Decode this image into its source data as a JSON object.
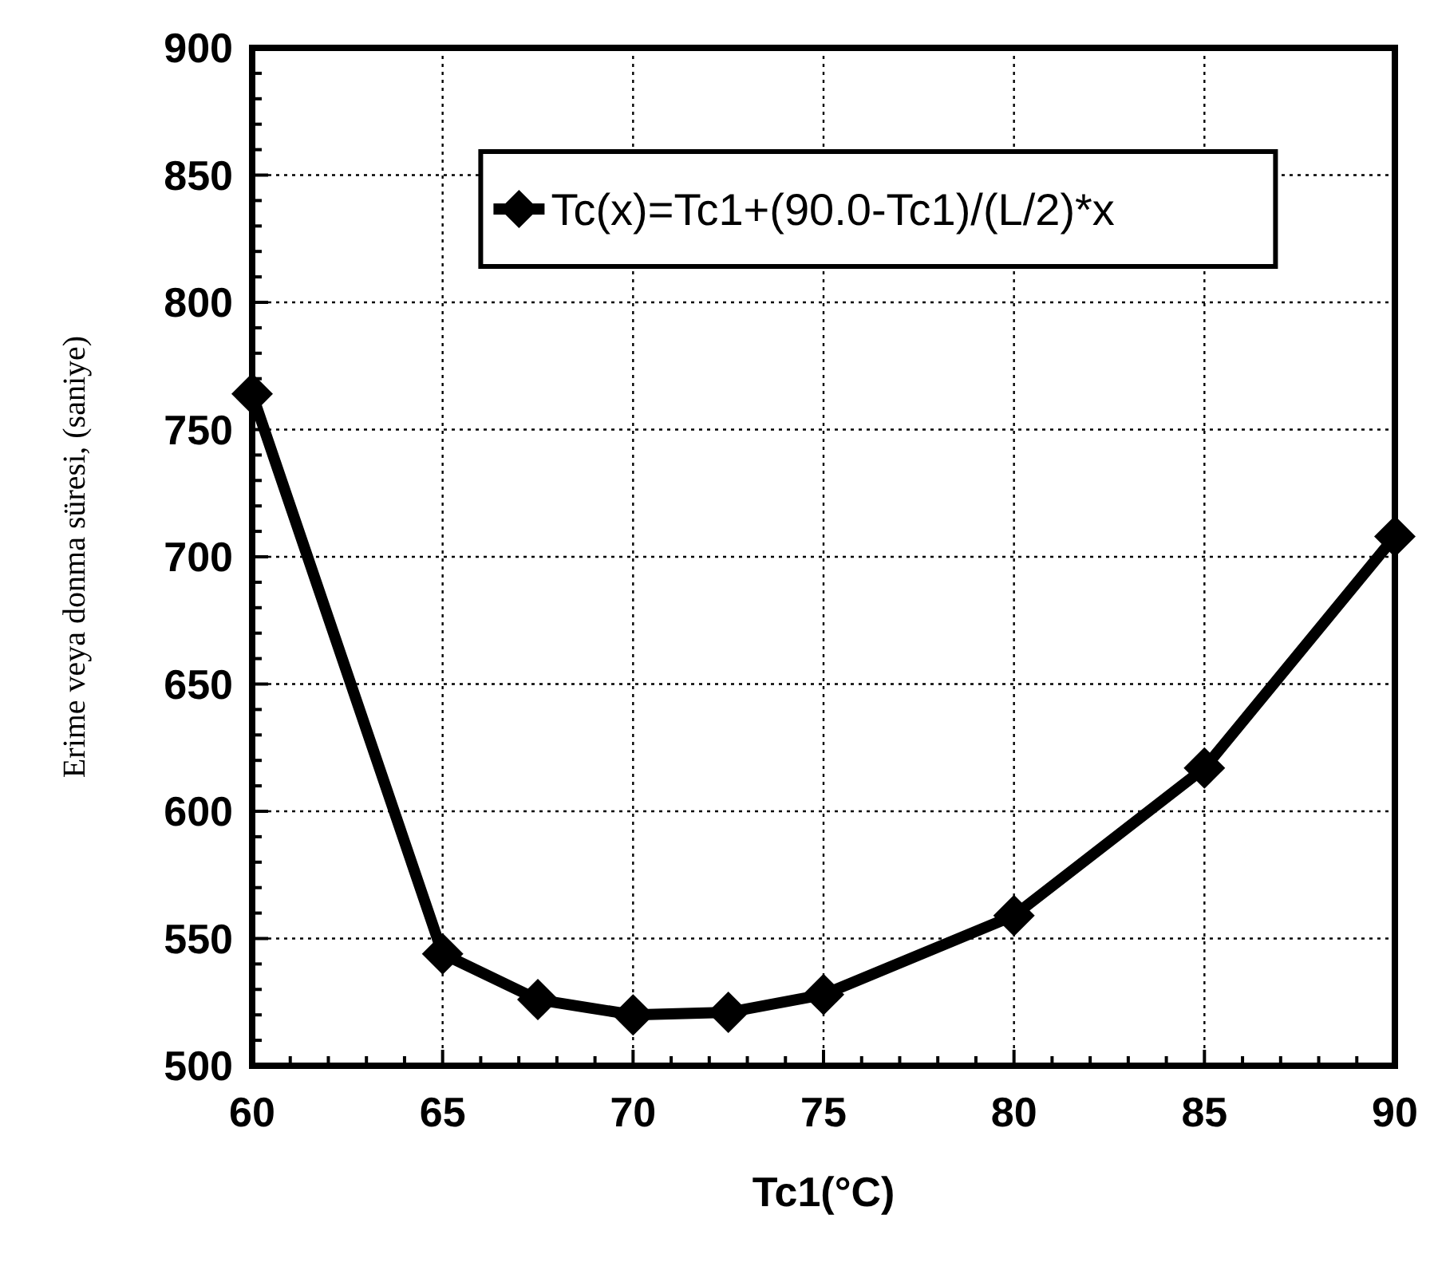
{
  "chart_data": {
    "type": "line",
    "xlabel": "Tc1(°C)",
    "ylabel": "Erime veya donma süresi, (saniye)",
    "xlim": [
      60,
      90
    ],
    "xticks": [
      60,
      65,
      70,
      75,
      80,
      85,
      90
    ],
    "ylim": [
      500,
      900
    ],
    "yticks": [
      500,
      550,
      600,
      650,
      700,
      750,
      800,
      850,
      900
    ],
    "grid": true,
    "legend": "top",
    "marker": "diamond",
    "line_style": "solid",
    "series": [
      {
        "name": "Tc(x)=Tc1+(90.0-Tc1)/(L/2)*x",
        "color": "#000000",
        "x": [
          60,
          65,
          67.5,
          70,
          72.5,
          75,
          80,
          85,
          90
        ],
        "values": [
          764,
          544,
          526,
          520,
          521,
          528,
          559,
          617,
          708
        ]
      }
    ]
  }
}
